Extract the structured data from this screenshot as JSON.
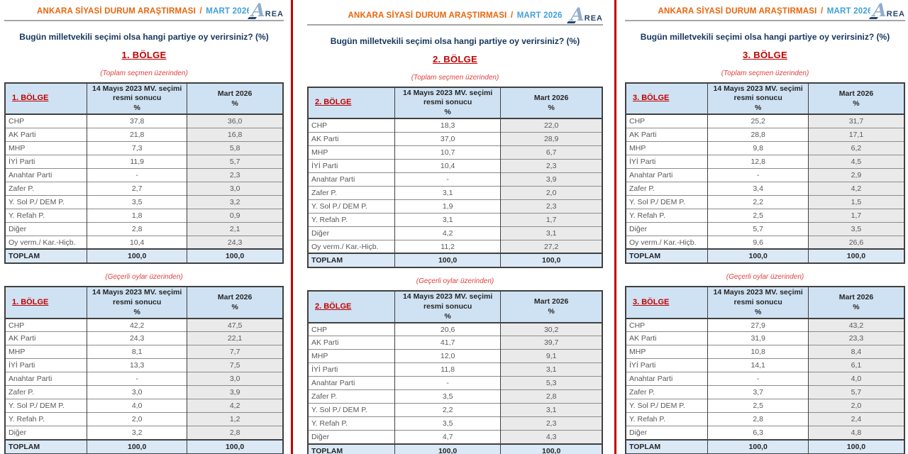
{
  "common": {
    "header": {
      "study_title": "ANKARA SİYASİ DURUM ARAŞTIRMASI",
      "separator": "/",
      "period": "MART 2026"
    },
    "logo": {
      "initial": "A",
      "rest": "REA"
    },
    "question": "Bugün milletvekili seçimi olsa hangi partiye oy verirsiniz? (%)",
    "subtitle_total": "(Toplam seçmen üzerinden)",
    "subtitle_valid": "(Geçerli oylar üzerinden)",
    "columns": {
      "official": "14 Mayıs 2023 MV. seçimi resmi sonucu",
      "pct": "%",
      "current": "Mart 2026"
    },
    "total_label": "TOPLAM",
    "total_value": "100,0",
    "colors": {
      "accent_red": "#C00000",
      "accent_orange": "#E8650C",
      "accent_blue": "#3FA0DC",
      "navy": "#17365D",
      "header_bg": "#CFE2F3",
      "total_bg": "#DBE9F6",
      "shade_bg": "#EAEAEA",
      "border_dark": "#404040",
      "border_mid": "#8C8C8C",
      "text_gray": "#595959"
    }
  },
  "panels": [
    {
      "region": "1. BÖLGE",
      "total_rows": [
        {
          "party": "CHP",
          "official": "37,8",
          "current": "36,0"
        },
        {
          "party": "AK Parti",
          "official": "21,8",
          "current": "16,8"
        },
        {
          "party": "MHP",
          "official": "7,3",
          "current": "5,8"
        },
        {
          "party": "İYİ Parti",
          "official": "11,9",
          "current": "5,7"
        },
        {
          "party": "Anahtar Parti",
          "official": "-",
          "current": "2,3"
        },
        {
          "party": "Zafer P.",
          "official": "2,7",
          "current": "3,0"
        },
        {
          "party": "Y. Sol P./ DEM P.",
          "official": "3,5",
          "current": "3,2"
        },
        {
          "party": "Y. Refah P.",
          "official": "1,8",
          "current": "0,9"
        },
        {
          "party": "Diğer",
          "official": "2,8",
          "current": "2,1"
        },
        {
          "party": "Oy verm./ Kar.-Hiçb.",
          "official": "10,4",
          "current": "24,3"
        }
      ],
      "valid_rows": [
        {
          "party": "CHP",
          "official": "42,2",
          "current": "47,5"
        },
        {
          "party": "AK Parti",
          "official": "24,3",
          "current": "22,1"
        },
        {
          "party": "MHP",
          "official": "8,1",
          "current": "7,7"
        },
        {
          "party": "İYİ Parti",
          "official": "13,3",
          "current": "7,5"
        },
        {
          "party": "Anahtar Parti",
          "official": "-",
          "current": "3,0"
        },
        {
          "party": "Zafer P.",
          "official": "3,0",
          "current": "3,9"
        },
        {
          "party": "Y. Sol P./ DEM P.",
          "official": "4,0",
          "current": "4,2"
        },
        {
          "party": "Y. Refah P.",
          "official": "2,0",
          "current": "1,2"
        },
        {
          "party": "Diğer",
          "official": "3,2",
          "current": "2,8"
        }
      ]
    },
    {
      "region": "2. BÖLGE",
      "total_rows": [
        {
          "party": "CHP",
          "official": "18,3",
          "current": "22,0"
        },
        {
          "party": "AK Parti",
          "official": "37,0",
          "current": "28,9"
        },
        {
          "party": "MHP",
          "official": "10,7",
          "current": "6,7"
        },
        {
          "party": "İYİ Parti",
          "official": "10,4",
          "current": "2,3"
        },
        {
          "party": "Anahtar Parti",
          "official": "-",
          "current": "3,9"
        },
        {
          "party": "Zafer P.",
          "official": "3,1",
          "current": "2,0"
        },
        {
          "party": "Y. Sol P./ DEM P.",
          "official": "1,9",
          "current": "2,3"
        },
        {
          "party": "Y. Refah P.",
          "official": "3,1",
          "current": "1,7"
        },
        {
          "party": "Diğer",
          "official": "4,2",
          "current": "3,1"
        },
        {
          "party": "Oy verm./ Kar.-Hiçb.",
          "official": "11,2",
          "current": "27,2"
        }
      ],
      "valid_rows": [
        {
          "party": "CHP",
          "official": "20,6",
          "current": "30,2"
        },
        {
          "party": "AK Parti",
          "official": "41,7",
          "current": "39,7"
        },
        {
          "party": "MHP",
          "official": "12,0",
          "current": "9,1"
        },
        {
          "party": "İYİ Parti",
          "official": "11,8",
          "current": "3,1"
        },
        {
          "party": "Anahtar Parti",
          "official": "-",
          "current": "5,3"
        },
        {
          "party": "Zafer P.",
          "official": "3,5",
          "current": "2,8"
        },
        {
          "party": "Y. Sol P./ DEM P.",
          "official": "2,2",
          "current": "3,1"
        },
        {
          "party": "Y. Refah P.",
          "official": "3,5",
          "current": "2,3"
        },
        {
          "party": "Diğer",
          "official": "4,7",
          "current": "4,3"
        }
      ]
    },
    {
      "region": "3. BÖLGE",
      "total_rows": [
        {
          "party": "CHP",
          "official": "25,2",
          "current": "31,7"
        },
        {
          "party": "AK Parti",
          "official": "28,8",
          "current": "17,1"
        },
        {
          "party": "MHP",
          "official": "9,8",
          "current": "6,2"
        },
        {
          "party": "İYİ Parti",
          "official": "12,8",
          "current": "4,5"
        },
        {
          "party": "Anahtar Parti",
          "official": "-",
          "current": "2,9"
        },
        {
          "party": "Zafer P.",
          "official": "3,4",
          "current": "4,2"
        },
        {
          "party": "Y. Sol P./ DEM P.",
          "official": "2,2",
          "current": "1,5"
        },
        {
          "party": "Y. Refah P.",
          "official": "2,5",
          "current": "1,7"
        },
        {
          "party": "Diğer",
          "official": "5,7",
          "current": "3,5"
        },
        {
          "party": "Oy verm./ Kar.-Hiçb.",
          "official": "9,6",
          "current": "26,6"
        }
      ],
      "valid_rows": [
        {
          "party": "CHP",
          "official": "27,9",
          "current": "43,2"
        },
        {
          "party": "AK Parti",
          "official": "31,9",
          "current": "23,3"
        },
        {
          "party": "MHP",
          "official": "10,8",
          "current": "8,4"
        },
        {
          "party": "İYİ Parti",
          "official": "14,1",
          "current": "6,1"
        },
        {
          "party": "Anahtar Parti",
          "official": "-",
          "current": "4,0"
        },
        {
          "party": "Zafer P.",
          "official": "3,7",
          "current": "5,7"
        },
        {
          "party": "Y. Sol P./ DEM P.",
          "official": "2,5",
          "current": "2,0"
        },
        {
          "party": "Y. Refah P.",
          "official": "2,8",
          "current": "2,4"
        },
        {
          "party": "Diğer",
          "official": "6,3",
          "current": "4,8"
        }
      ]
    }
  ]
}
